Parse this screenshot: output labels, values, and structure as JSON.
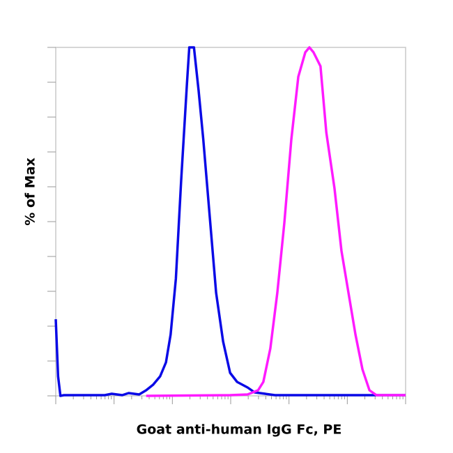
{
  "chart_data": {
    "type": "line",
    "xlabel": "Goat anti-human IgG Fc, PE",
    "ylabel": "% of Max",
    "xlim": [
      0,
      6
    ],
    "xticks": [
      0,
      1,
      2,
      3,
      4,
      5,
      6
    ],
    "xscale": "log-decades",
    "ylim": [
      0,
      100
    ],
    "yticks": [
      0,
      10,
      20,
      30,
      40,
      50,
      60,
      70,
      80,
      90,
      100
    ],
    "grid": false,
    "series": [
      {
        "color": "#0a0ae6",
        "x": [
          0,
          0.04,
          0.08,
          0.14,
          0.84,
          0.96,
          1.14,
          1.25,
          1.43,
          1.55,
          1.67,
          1.79,
          1.89,
          1.97,
          2.06,
          2.15,
          2.25,
          2.29,
          2.37,
          2.45,
          2.53,
          2.63,
          2.75,
          2.87,
          2.99,
          3.11,
          3.29,
          3.41,
          3.59,
          3.76,
          4.06,
          6
        ],
        "values": [
          22,
          5.6,
          0,
          0.2,
          0.2,
          0.6,
          0.2,
          0.8,
          0.4,
          1.6,
          3.2,
          5.6,
          9.6,
          17.6,
          33.6,
          61.6,
          89.6,
          100,
          100,
          87.6,
          73.6,
          53.6,
          29.6,
          15.6,
          6.6,
          4,
          2.4,
          1,
          0.6,
          0.2,
          0.2,
          0.2
        ]
      },
      {
        "color": "#ff1aff",
        "x": [
          1.55,
          2.99,
          3.29,
          3.47,
          3.56,
          3.68,
          3.8,
          3.92,
          4.04,
          4.16,
          4.28,
          4.35,
          4.42,
          4.54,
          4.64,
          4.78,
          4.9,
          5.02,
          5.14,
          5.26,
          5.38,
          5.5,
          5.74,
          6
        ],
        "values": [
          0,
          0.2,
          0.4,
          1.6,
          4,
          13.6,
          29.6,
          49.6,
          73.6,
          91.6,
          98.6,
          100,
          98.6,
          94.6,
          75.6,
          59.6,
          41.6,
          29.6,
          17.6,
          7.6,
          1.6,
          0.2,
          0.2,
          0.2
        ]
      }
    ]
  }
}
